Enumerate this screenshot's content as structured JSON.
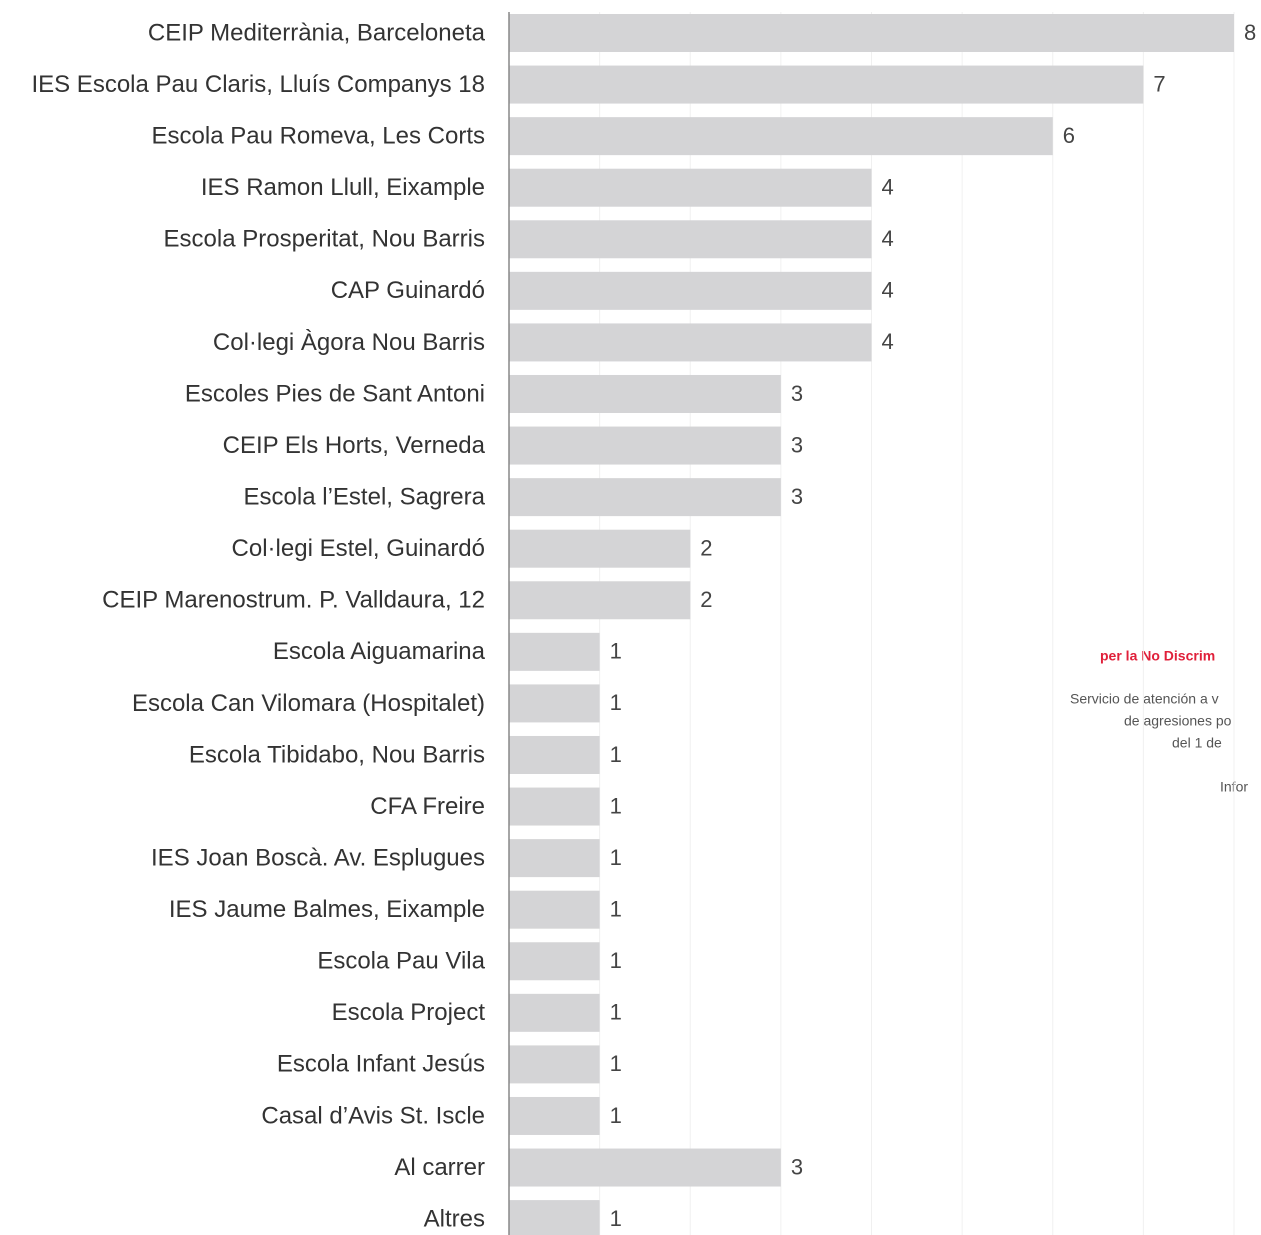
{
  "chart_data": {
    "type": "barh",
    "categories": [
      "CEIP Mediterrània, Barceloneta",
      "IES Escola Pau Claris, Lluís Companys 18",
      "Escola Pau Romeva, Les Corts",
      "IES Ramon Llull, Eixample",
      "Escola Prosperitat, Nou Barris",
      "CAP Guinardó",
      "Col·legi Àgora Nou Barris",
      "Escoles Pies de Sant Antoni",
      "CEIP Els Horts, Verneda",
      "Escola l’Estel, Sagrera",
      "Col·legi Estel, Guinardó",
      "CEIP Marenostrum. P. Valldaura, 12",
      "Escola Aiguamarina",
      "Escola Can Vilomara (Hospitalet)",
      "Escola Tibidabo, Nou Barris",
      "CFA Freire",
      "IES Joan Boscà. Av. Esplugues",
      "IES Jaume Balmes, Eixample",
      "Escola Pau Vila",
      "Escola Project",
      "Escola Infant Jesús",
      "Casal d’Avis St. Iscle",
      "Al carrer",
      "Altres"
    ],
    "values": [
      8,
      7,
      6,
      4,
      4,
      4,
      4,
      3,
      3,
      3,
      2,
      2,
      1,
      1,
      1,
      1,
      1,
      1,
      1,
      1,
      1,
      1,
      3,
      1
    ],
    "color": "#d4d4d6",
    "xlim": [
      0,
      8
    ],
    "grid": true
  },
  "side_note": {
    "title": "per la No Discrim",
    "lines": [
      "Servicio de atención a v",
      "de agresiones po",
      "del 1 de",
      "Infor"
    ]
  }
}
